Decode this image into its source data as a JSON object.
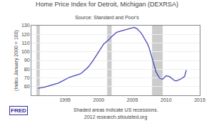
{
  "chart_data": {
    "type": "line",
    "title": "Home Price Index for Detroit, Michigan (DEXRSA)",
    "subtitle": "Source: Standard and Poor's",
    "ylabel": "(Index January 2000 = 100)",
    "annotations": [
      "Shaded areas indicate US recessions.",
      "2012 research.stlouisfed.org",
      "FRED"
    ],
    "color": "#4444bb",
    "recessions": {
      "ranges": [
        [
          1990.75,
          1991.25
        ],
        [
          2001.25,
          2001.92
        ],
        [
          2007.92,
          2009.5
        ]
      ],
      "color": "#cccccc"
    },
    "xlim": [
      1990,
      2015
    ],
    "ylim": [
      50,
      130
    ],
    "xticks": [
      1995,
      2000,
      2005,
      2010,
      2015
    ],
    "yticks": [
      60,
      70,
      80,
      90,
      100,
      110,
      120,
      130
    ],
    "grid": true,
    "x": [
      1991.0,
      1991.25,
      1991.5,
      1991.75,
      1992.0,
      1992.25,
      1992.5,
      1992.75,
      1993.0,
      1993.25,
      1993.5,
      1993.75,
      1994.0,
      1994.25,
      1994.5,
      1994.75,
      1995.0,
      1995.25,
      1995.5,
      1995.75,
      1996.0,
      1996.25,
      1996.5,
      1996.75,
      1997.0,
      1997.25,
      1997.5,
      1997.75,
      1998.0,
      1998.25,
      1998.5,
      1998.75,
      1999.0,
      1999.25,
      1999.5,
      1999.75,
      2000.0,
      2000.25,
      2000.5,
      2000.75,
      2001.0,
      2001.25,
      2001.5,
      2001.75,
      2002.0,
      2002.25,
      2002.5,
      2002.75,
      2003.0,
      2003.25,
      2003.5,
      2003.75,
      2004.0,
      2004.25,
      2004.5,
      2004.75,
      2005.0,
      2005.25,
      2005.5,
      2005.75,
      2006.0,
      2006.25,
      2006.5,
      2006.75,
      2007.0,
      2007.25,
      2007.5,
      2007.75,
      2008.0,
      2008.25,
      2008.5,
      2008.75,
      2009.0,
      2009.25,
      2009.5,
      2009.75,
      2010.0,
      2010.25,
      2010.5,
      2010.75,
      2011.0,
      2011.25,
      2011.5,
      2011.75,
      2012.0,
      2012.25,
      2012.5,
      2012.75,
      2013.0
    ],
    "values": [
      58.0,
      58.2,
      58.5,
      59.0,
      59.5,
      60.0,
      60.5,
      61.0,
      61.5,
      62.0,
      62.8,
      63.5,
      64.0,
      65.0,
      66.0,
      67.0,
      68.0,
      69.5,
      70.5,
      71.0,
      71.5,
      72.0,
      72.5,
      73.0,
      73.5,
      74.5,
      76.0,
      77.5,
      79.0,
      81.0,
      83.0,
      85.5,
      88.0,
      91.0,
      94.0,
      97.0,
      100.0,
      103.0,
      106.0,
      109.0,
      110.5,
      112.0,
      114.0,
      116.0,
      118.0,
      120.0,
      121.5,
      122.5,
      123.0,
      123.5,
      124.0,
      124.5,
      125.0,
      125.5,
      126.5,
      127.0,
      127.5,
      128.0,
      127.0,
      126.0,
      124.0,
      122.0,
      119.0,
      116.0,
      113.0,
      109.0,
      104.0,
      98.0,
      92.0,
      84.0,
      77.0,
      73.0,
      70.0,
      69.0,
      68.5,
      70.5,
      72.5,
      72.0,
      71.5,
      70.0,
      68.5,
      67.0,
      66.5,
      67.0,
      68.0,
      69.0,
      70.0,
      71.5,
      79.0
    ]
  }
}
